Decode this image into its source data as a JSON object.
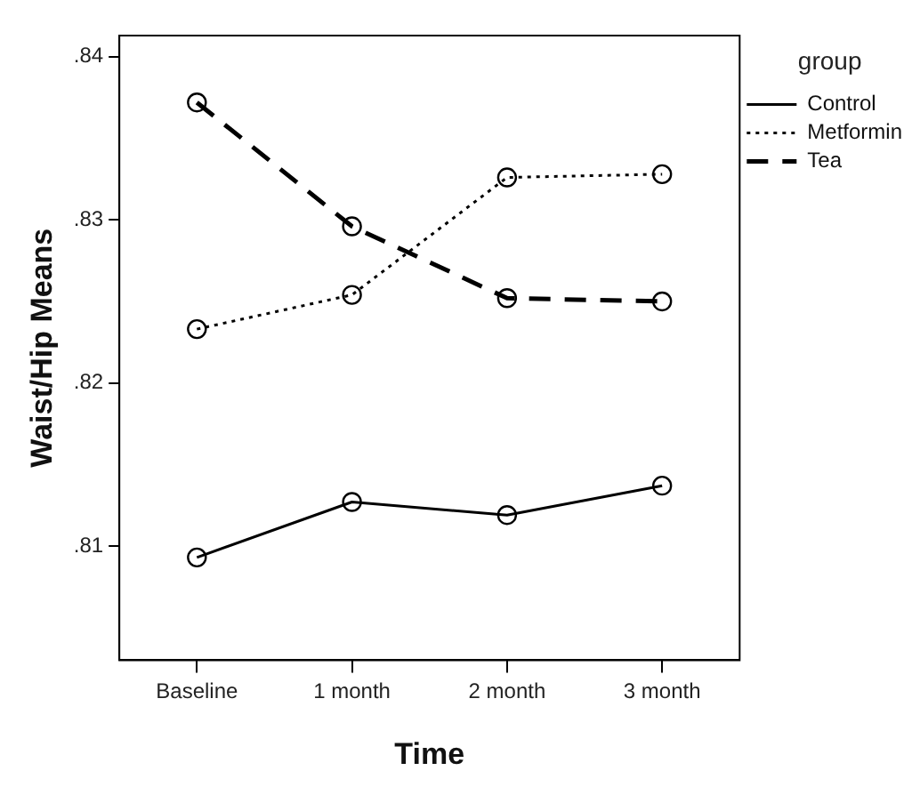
{
  "chart_data": {
    "type": "line",
    "xlabel": "Time",
    "ylabel": "Waist/Hip Means",
    "legend_title": "group",
    "categories": [
      "Baseline",
      "1 month",
      "2 month",
      "3 month"
    ],
    "series": [
      {
        "name": "Control",
        "color": "#000000",
        "line_style": "solid",
        "values": [
          0.8093,
          0.8127,
          0.8119,
          0.8137
        ]
      },
      {
        "name": "Metformin",
        "color": "#000000",
        "line_style": "dotted",
        "values": [
          0.8233,
          0.8254,
          0.8326,
          0.8328
        ]
      },
      {
        "name": "Tea",
        "color": "#000000",
        "line_style": "dashed",
        "values": [
          0.8372,
          0.8296,
          0.8252,
          0.825
        ]
      }
    ],
    "ylim": [
      0.803,
      0.8413
    ],
    "yticks": [
      {
        "value": 0.81,
        "label": ".81"
      },
      {
        "value": 0.82,
        "label": ".82"
      },
      {
        "value": 0.83,
        "label": ".83"
      },
      {
        "value": 0.84,
        "label": ".84"
      }
    ],
    "grid": false,
    "legend": "right",
    "marker": "circle"
  }
}
